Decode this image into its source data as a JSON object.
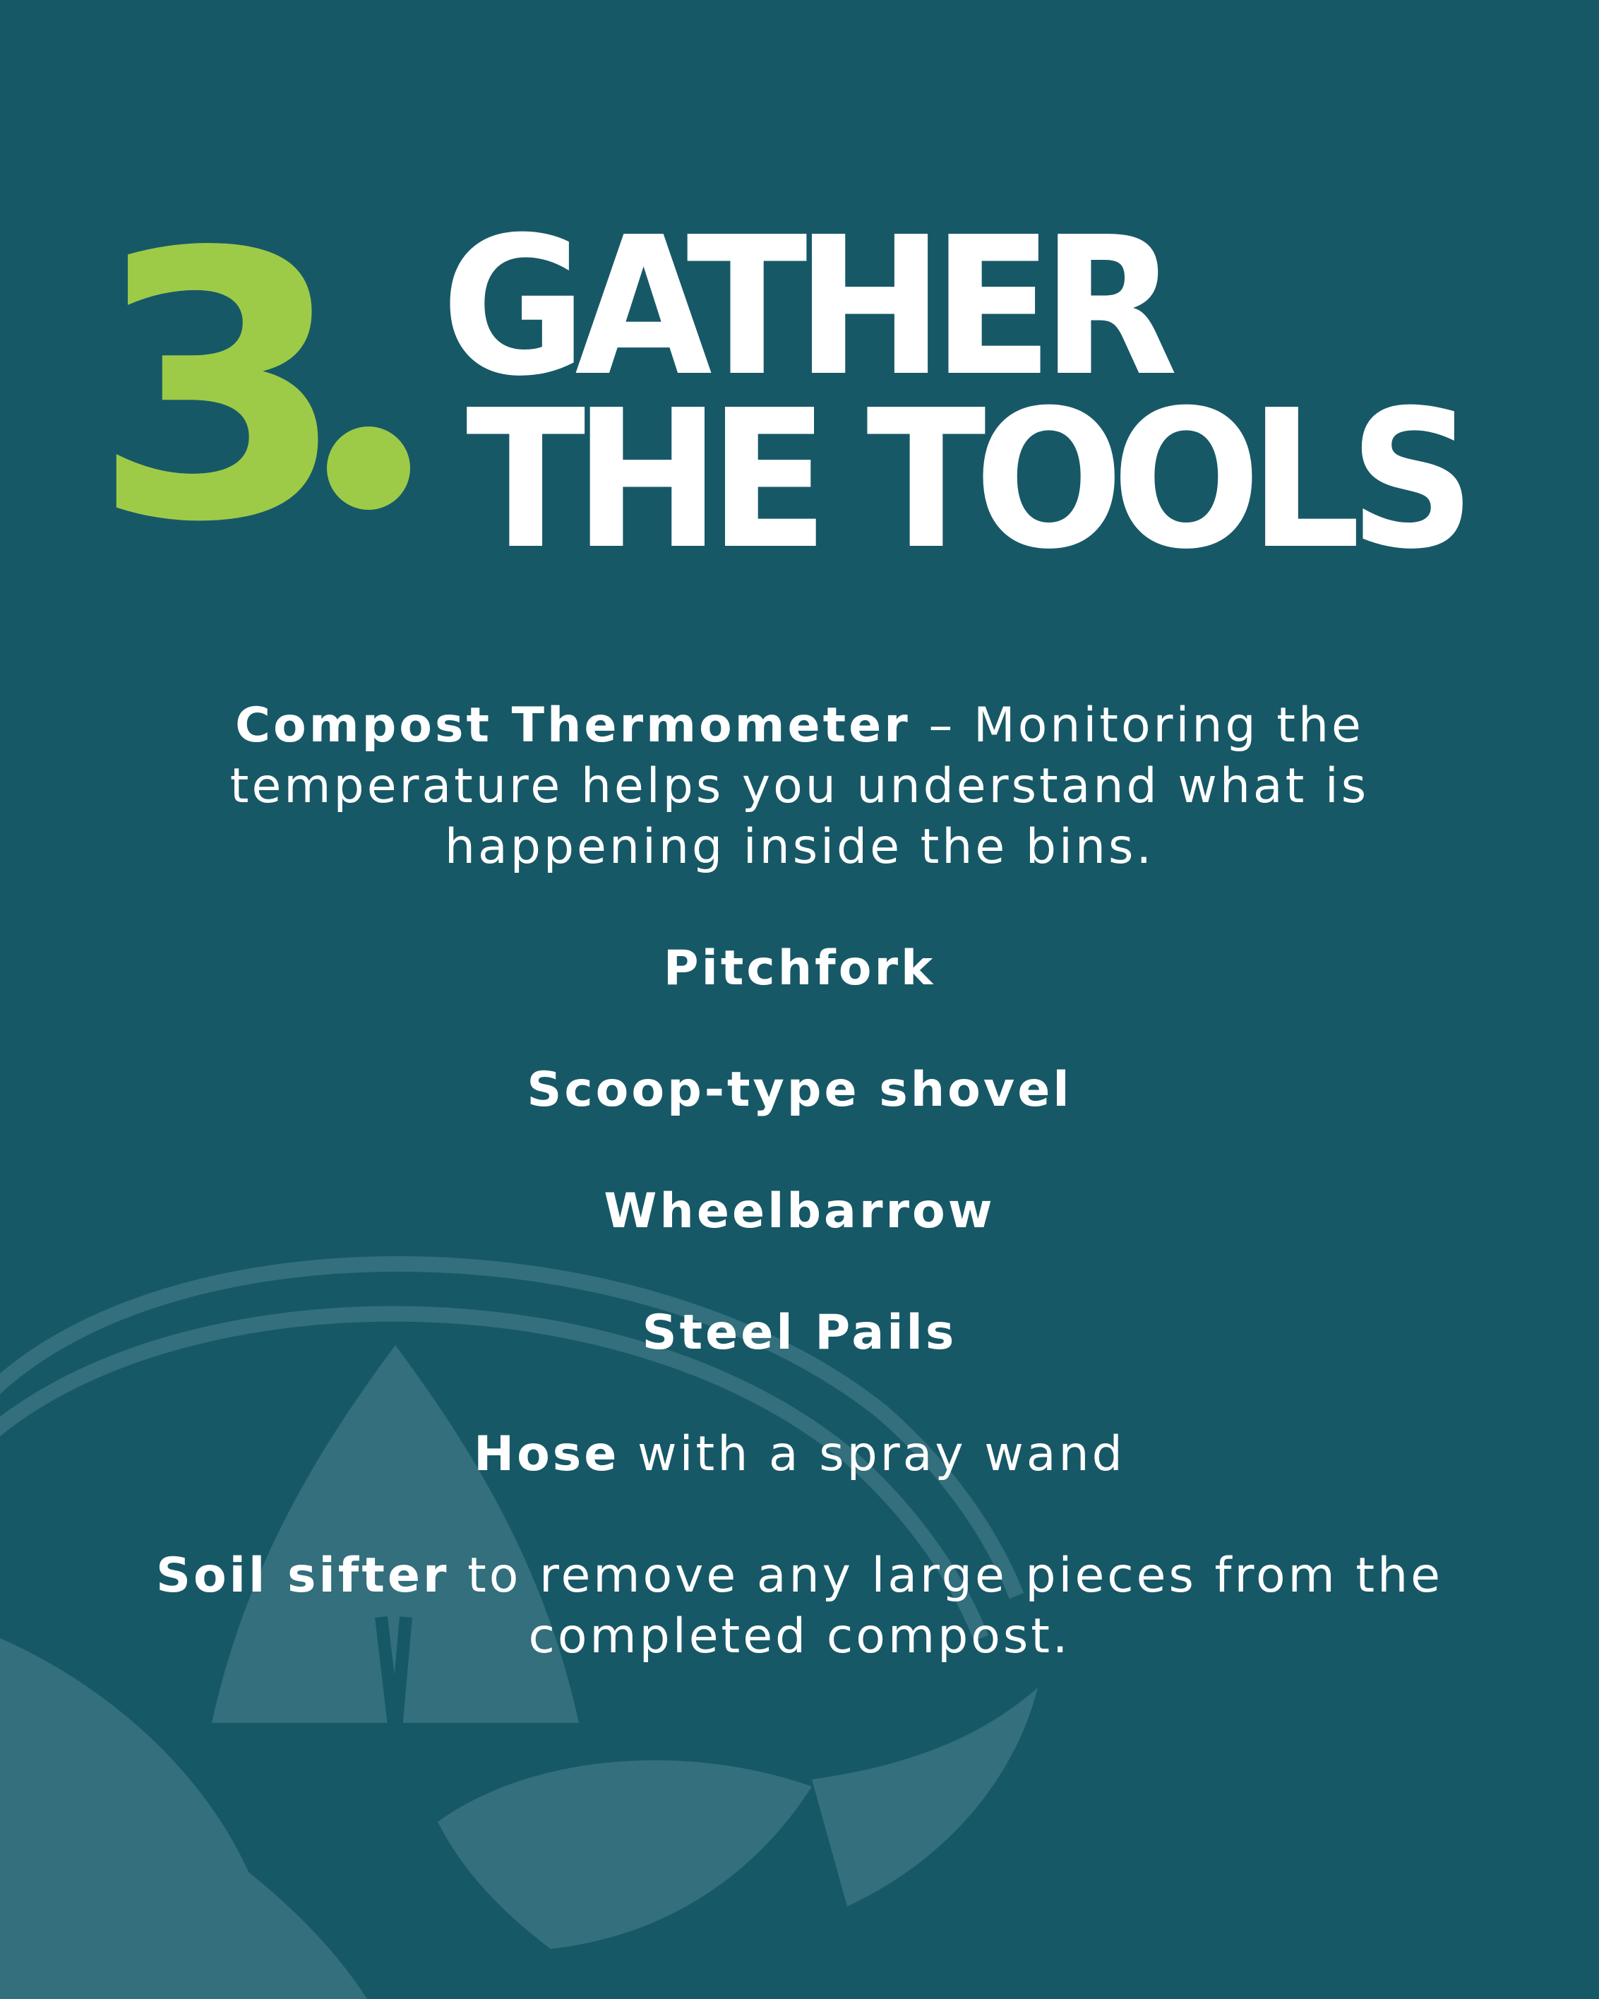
{
  "header": {
    "step_number": "3",
    "title_line_1": "GATHER",
    "title_line_2": "THE TOOLS"
  },
  "tools": [
    {
      "name": "Compost Thermometer",
      "description": " – Monitoring the temperature helps you understand what is happening inside the bins."
    },
    {
      "name": "Pitchfork",
      "description": ""
    },
    {
      "name": "Scoop-type shovel",
      "description": ""
    },
    {
      "name": "Wheelbarrow",
      "description": ""
    },
    {
      "name": "Steel Pails",
      "description": ""
    },
    {
      "name": "Hose",
      "description": " with a spray wand"
    },
    {
      "name": "Soil sifter",
      "description": " to remove any large pieces from the completed compost."
    }
  ],
  "colors": {
    "background": "#175867",
    "accent_green": "#9dcb47",
    "text": "#ffffff",
    "logo_watermark": "#2f6d7b"
  },
  "icons": {
    "watermark": "leaf-logo-watermark-icon"
  }
}
